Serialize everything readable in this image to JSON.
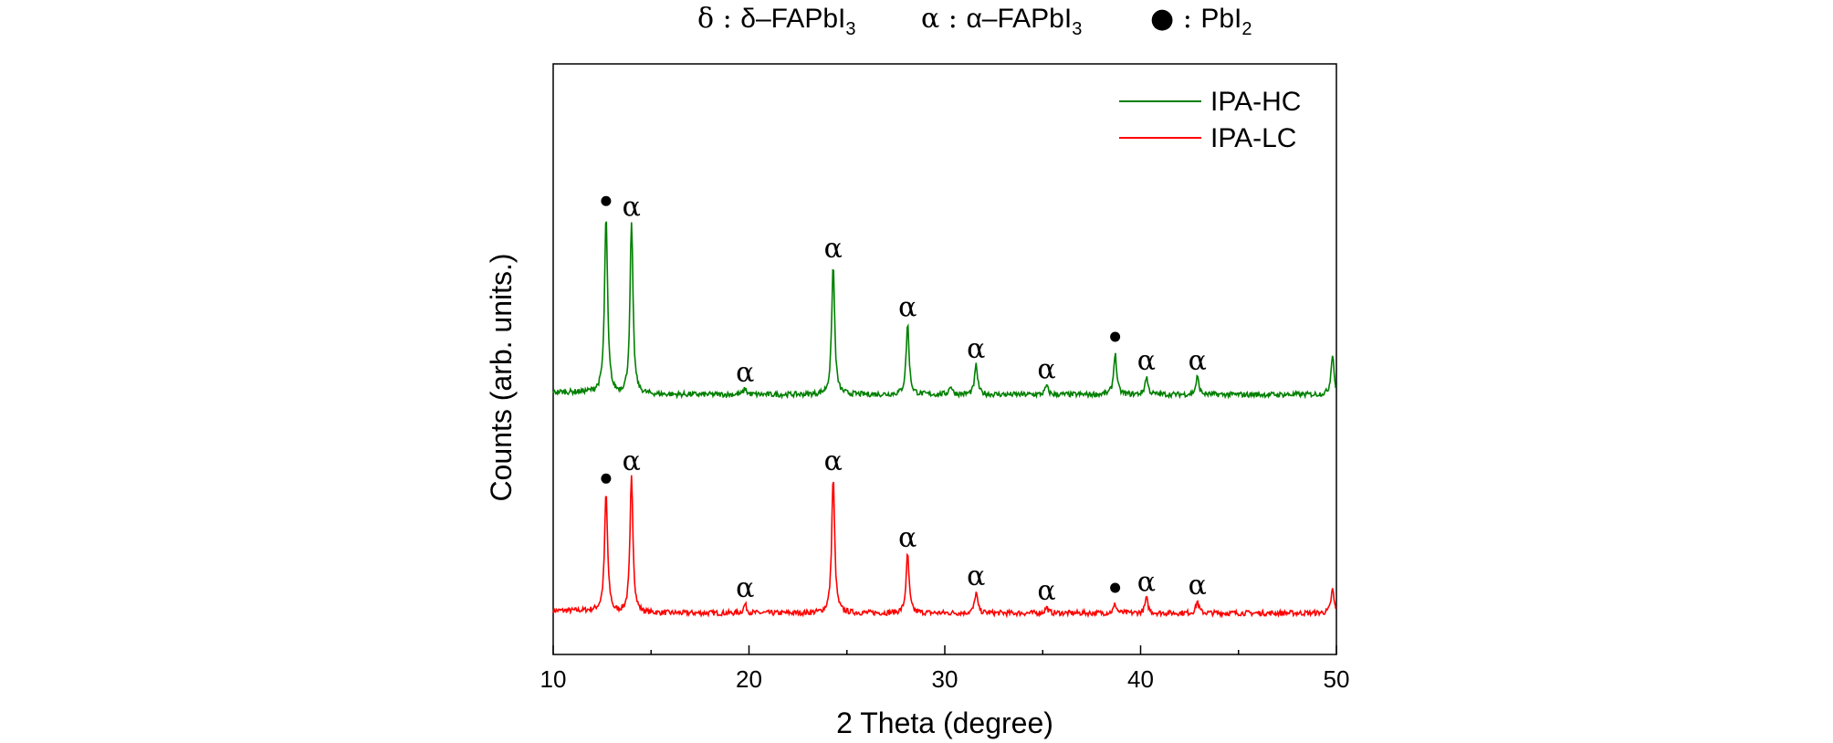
{
  "chart_data": {
    "type": "line",
    "title": "",
    "xlabel": "2 Theta (degree)",
    "ylabel": "Counts (arb. units.)",
    "xlim": [
      10,
      50
    ],
    "ylim": [
      0,
      100
    ],
    "xticks": [
      10,
      20,
      30,
      40,
      50
    ],
    "grid": false,
    "legend_position": "top-right",
    "phase_key": [
      {
        "symbol": "δ",
        "label": "δ–FAPbI",
        "subscript": "3"
      },
      {
        "symbol": "α",
        "label": "α–FAPbI",
        "subscript": "3"
      },
      {
        "symbol": "●",
        "label": "PbI",
        "subscript": "2"
      }
    ],
    "series": [
      {
        "name": "IPA-LC",
        "color": "#ff0000",
        "baseline": 7,
        "peaks": [
          {
            "x": 12.7,
            "y": 27,
            "label": "●"
          },
          {
            "x": 14.0,
            "y": 30,
            "label": "α"
          },
          {
            "x": 19.8,
            "y": 8.5,
            "label": "α"
          },
          {
            "x": 24.3,
            "y": 30,
            "label": "α"
          },
          {
            "x": 28.1,
            "y": 17,
            "label": "α"
          },
          {
            "x": 31.6,
            "y": 10.5,
            "label": "α"
          },
          {
            "x": 35.2,
            "y": 8,
            "label": "α"
          },
          {
            "x": 38.7,
            "y": 8.5,
            "label": "●"
          },
          {
            "x": 40.3,
            "y": 9.5,
            "label": "α"
          },
          {
            "x": 42.9,
            "y": 9,
            "label": "α"
          },
          {
            "x": 49.8,
            "y": 11,
            "label": ""
          }
        ]
      },
      {
        "name": "IPA-HC",
        "color": "#008000",
        "baseline": 44,
        "peaks": [
          {
            "x": 12.7,
            "y": 74,
            "label": "●"
          },
          {
            "x": 14.0,
            "y": 73,
            "label": "α"
          },
          {
            "x": 19.8,
            "y": 45,
            "label": "α"
          },
          {
            "x": 24.3,
            "y": 66,
            "label": "α"
          },
          {
            "x": 28.1,
            "y": 56,
            "label": "α"
          },
          {
            "x": 30.3,
            "y": 45.5,
            "label": ""
          },
          {
            "x": 31.6,
            "y": 49,
            "label": "α"
          },
          {
            "x": 35.2,
            "y": 45.5,
            "label": "α"
          },
          {
            "x": 38.7,
            "y": 51,
            "label": "●"
          },
          {
            "x": 40.3,
            "y": 47,
            "label": "α"
          },
          {
            "x": 42.9,
            "y": 47,
            "label": "α"
          },
          {
            "x": 49.8,
            "y": 51,
            "label": ""
          }
        ]
      }
    ]
  }
}
